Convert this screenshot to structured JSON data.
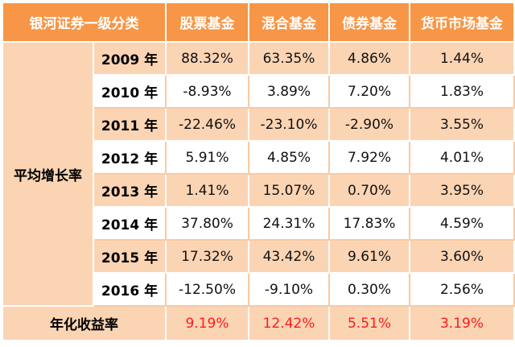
{
  "header": {
    "category": "银河证券一级分类",
    "col_stock": "股票基金",
    "col_mixed": "混合基金",
    "col_bond": "债券基金",
    "col_money": "货币市场基金"
  },
  "row_group_label": "平均增长率",
  "rows": [
    {
      "year": "2009 年",
      "stock": "88.32%",
      "mixed": "63.35%",
      "bond": "4.86%",
      "money": "1.44%"
    },
    {
      "year": "2010 年",
      "stock": "-8.93%",
      "mixed": "3.89%",
      "bond": "7.20%",
      "money": "1.83%"
    },
    {
      "year": "2011 年",
      "stock": "-22.46%",
      "mixed": "-23.10%",
      "bond": "-2.90%",
      "money": "3.55%"
    },
    {
      "year": "2012 年",
      "stock": "5.91%",
      "mixed": "4.85%",
      "bond": "7.92%",
      "money": "4.01%"
    },
    {
      "year": "2013 年",
      "stock": "1.41%",
      "mixed": "15.07%",
      "bond": "0.70%",
      "money": "3.95%"
    },
    {
      "year": "2014 年",
      "stock": "37.80%",
      "mixed": "24.31%",
      "bond": "17.83%",
      "money": "4.59%"
    },
    {
      "year": "2015 年",
      "stock": "17.32%",
      "mixed": "43.42%",
      "bond": "9.61%",
      "money": "3.60%"
    },
    {
      "year": "2016 年",
      "stock": "-12.50%",
      "mixed": "-9.10%",
      "bond": "0.30%",
      "money": "2.56%"
    }
  ],
  "summary": {
    "label": "年化收益率",
    "stock": "9.19%",
    "mixed": "12.42%",
    "bond": "5.51%",
    "money": "3.19%"
  },
  "colors": {
    "header_bg": "#f79646",
    "band_bg": "#fbd4b4",
    "summary_text": "#ff1a1a"
  }
}
